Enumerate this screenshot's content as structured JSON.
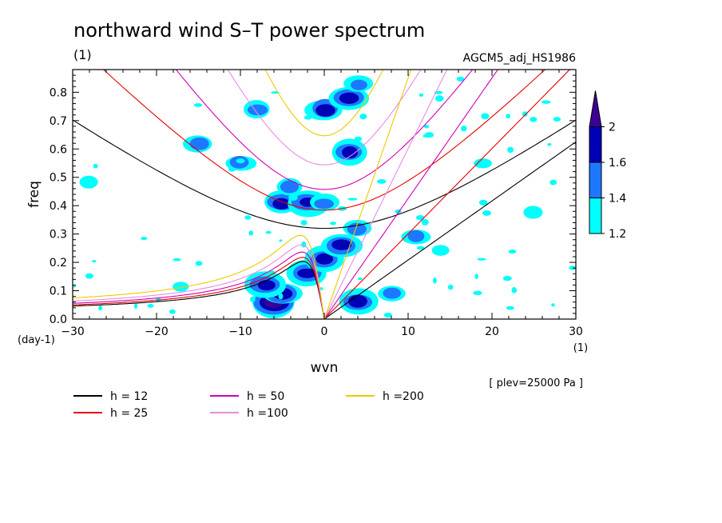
{
  "chart_data": {
    "type": "heatmap",
    "title": "northward wind S–T power spectrum",
    "subtitle_left": "(1)",
    "subtitle_right": "AGCM5_adj_HS1986",
    "xlabel": "wvn",
    "ylabel": "freq",
    "x_unit": "(1)",
    "y_unit": "(day-1)",
    "xlim": [
      -30,
      30
    ],
    "ylim": [
      0,
      0.88
    ],
    "x_ticks": [
      -30,
      -20,
      -10,
      0,
      10,
      20,
      30
    ],
    "y_ticks": [
      0.0,
      0.1,
      0.2,
      0.3,
      0.4,
      0.5,
      0.6,
      0.7,
      0.8
    ],
    "x_tick_labels": [
      "−30",
      "−20",
      "−10",
      "0",
      "10",
      "20",
      "30"
    ],
    "y_tick_labels": [
      "0.0",
      "0.1",
      "0.2",
      "0.3",
      "0.4",
      "0.5",
      "0.6",
      "0.7",
      "0.8"
    ],
    "note": "[ plev=25000 Pa ]",
    "colorbar": {
      "levels": [
        "1.2",
        "1.4",
        "1.6",
        "2"
      ],
      "colors": [
        "#00ffff",
        "#1e78ff",
        "#0000b4",
        "#3c0096"
      ]
    },
    "dispersion_curves": [
      {
        "label": "h = 12",
        "h": 12,
        "color": "#000000"
      },
      {
        "label": "h = 25",
        "h": 25,
        "color": "#e60000"
      },
      {
        "label": "h = 50",
        "h": 50,
        "color": "#d200b4"
      },
      {
        "label": "h =100",
        "h": 100,
        "color": "#e68ce6"
      },
      {
        "label": "h =200",
        "h": 200,
        "color": "#f0c800"
      }
    ],
    "power_regions": [
      {
        "x": -6,
        "y": 0.06,
        "level": 4
      },
      {
        "x": -5,
        "y": 0.09,
        "level": 3
      },
      {
        "x": -7,
        "y": 0.12,
        "level": 3
      },
      {
        "x": -2,
        "y": 0.16,
        "level": 3
      },
      {
        "x": 0,
        "y": 0.21,
        "level": 3
      },
      {
        "x": 2,
        "y": 0.26,
        "level": 3
      },
      {
        "x": 4,
        "y": 0.32,
        "level": 2
      },
      {
        "x": -5,
        "y": 0.41,
        "level": 3
      },
      {
        "x": -2,
        "y": 0.41,
        "level": 3
      },
      {
        "x": 0,
        "y": 0.41,
        "level": 2
      },
      {
        "x": -4,
        "y": 0.47,
        "level": 2
      },
      {
        "x": 3,
        "y": 0.59,
        "level": 3
      },
      {
        "x": 0,
        "y": 0.74,
        "level": 3
      },
      {
        "x": 3,
        "y": 0.78,
        "level": 3
      },
      {
        "x": 4,
        "y": 0.83,
        "level": 2
      },
      {
        "x": 4,
        "y": 0.06,
        "level": 3
      },
      {
        "x": 8,
        "y": 0.09,
        "level": 2
      },
      {
        "x": 11,
        "y": 0.29,
        "level": 2
      },
      {
        "x": -15,
        "y": 0.62,
        "level": 2
      },
      {
        "x": -10,
        "y": 0.55,
        "level": 2
      },
      {
        "x": -17,
        "y": 0.11,
        "level": 1
      },
      {
        "x": -28,
        "y": 0.48,
        "level": 1
      },
      {
        "x": -8,
        "y": 0.74,
        "level": 2
      },
      {
        "x": 14,
        "y": 0.24,
        "level": 1
      },
      {
        "x": 25,
        "y": 0.38,
        "level": 1
      },
      {
        "x": 19,
        "y": 0.55,
        "level": 1
      }
    ]
  }
}
